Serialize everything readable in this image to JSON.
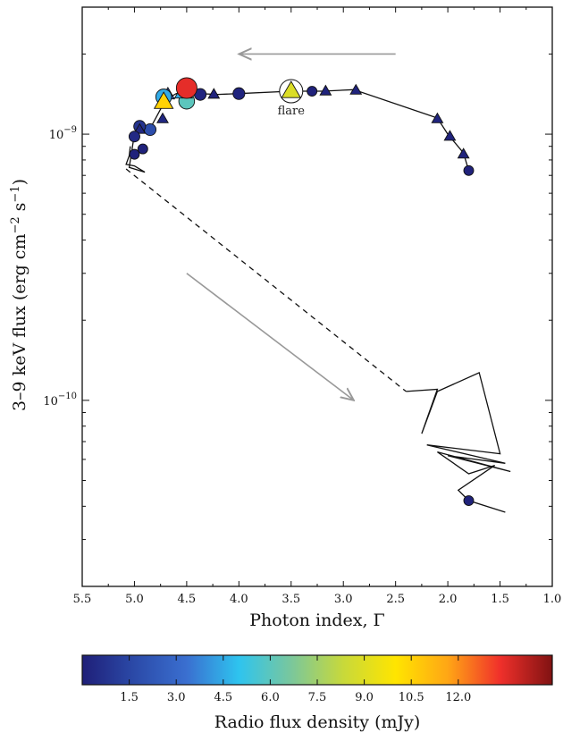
{
  "chart_data": {
    "type": "scatter",
    "xlabel": "Photon index, Γ",
    "ylabel_main": "3–9 keV flux (erg cm",
    "ylabel_sup1": "−2",
    "ylabel_mid": " s",
    "ylabel_sup2": "−1",
    "ylabel_end": ")",
    "x_axis": {
      "range": [
        5.5,
        1.0
      ],
      "reversed": true,
      "ticks": [
        5.5,
        5.0,
        4.5,
        4.0,
        3.5,
        3.0,
        2.5,
        2.0,
        1.5,
        1.0
      ],
      "tick_labels": [
        "5.5",
        "5.0",
        "4.5",
        "4.0",
        "3.5",
        "3.0",
        "2.5",
        "2.0",
        "1.5",
        "1.0"
      ]
    },
    "y_axis": {
      "scale": "log",
      "range": [
        2e-11,
        3e-09
      ],
      "major_ticks": [
        {
          "value": 1e-09,
          "base": "10",
          "exp": "−9"
        },
        {
          "value": 1e-10,
          "base": "10",
          "exp": "−10"
        }
      ]
    },
    "track": [
      [
        1.8,
        7.3e-10
      ],
      [
        1.85,
        8.5e-10
      ],
      [
        2.0,
        1e-09
      ],
      [
        2.1,
        1.15e-09
      ],
      [
        2.9,
        1.47e-09
      ],
      [
        3.2,
        1.45e-09
      ],
      [
        3.3,
        1.45e-09
      ],
      [
        3.5,
        1.45e-09
      ],
      [
        4.0,
        1.42e-09
      ],
      [
        4.2,
        1.41e-09
      ],
      [
        4.4,
        1.42e-09
      ],
      [
        4.5,
        1.45e-09
      ],
      [
        4.6,
        1.42e-09
      ],
      [
        4.7,
        1.35e-09
      ],
      [
        4.85,
        1.05e-09
      ],
      [
        4.95,
        1.1e-09
      ],
      [
        5.0,
        1e-09
      ],
      [
        5.05,
        7.5e-10
      ],
      [
        4.9,
        7.2e-10
      ],
      [
        5.0,
        7.6e-10
      ],
      [
        5.08,
        7.7e-10
      ],
      [
        5.05,
        8.3e-10
      ],
      [
        5.04,
        9e-10
      ]
    ],
    "gap_line": [
      [
        5.08,
        7.4e-10
      ],
      [
        2.4,
        1.08e-10
      ]
    ],
    "track_end": [
      [
        2.4,
        1.08e-10
      ],
      [
        2.1,
        1.1e-10
      ],
      [
        2.25,
        7.5e-11
      ],
      [
        2.1,
        1.08e-10
      ],
      [
        1.7,
        1.27e-10
      ],
      [
        1.5,
        6.3e-11
      ],
      [
        2.2,
        6.8e-11
      ],
      [
        1.45,
        5.8e-11
      ],
      [
        2.0,
        6.2e-11
      ],
      [
        1.4,
        5.4e-11
      ],
      [
        2.1,
        6.4e-11
      ],
      [
        1.8,
        5.3e-11
      ],
      [
        1.55,
        5.7e-11
      ],
      [
        1.9,
        4.6e-11
      ],
      [
        1.8,
        4.2e-11
      ],
      [
        1.45,
        3.8e-11
      ]
    ],
    "points": [
      {
        "x": 1.8,
        "y": 7.3e-10,
        "m": "o",
        "s": 1,
        "c": 0.1
      },
      {
        "x": 1.85,
        "y": 8.4e-10,
        "m": "^",
        "s": 1,
        "c": 0.15
      },
      {
        "x": 1.98,
        "y": 9.8e-10,
        "m": "^",
        "s": 1,
        "c": 0.15
      },
      {
        "x": 2.1,
        "y": 1.14e-09,
        "m": "^",
        "s": 1,
        "c": 0.2
      },
      {
        "x": 2.88,
        "y": 1.46e-09,
        "m": "^",
        "s": 1,
        "c": 0.15
      },
      {
        "x": 3.17,
        "y": 1.45e-09,
        "m": "^",
        "s": 1,
        "c": 0.15
      },
      {
        "x": 3.3,
        "y": 1.45e-09,
        "m": "o",
        "s": 1,
        "c": 0.1
      },
      {
        "x": 4.0,
        "y": 1.42e-09,
        "m": "o",
        "s": 1.2,
        "c": 0.2
      },
      {
        "x": 4.24,
        "y": 1.41e-09,
        "m": "^",
        "s": 1,
        "c": 0.15
      },
      {
        "x": 4.37,
        "y": 1.41e-09,
        "m": "o",
        "s": 1.2,
        "c": 0.25
      },
      {
        "x": 4.5,
        "y": 1.33e-09,
        "m": "o",
        "s": 1.6,
        "c": 6.0
      },
      {
        "x": 4.53,
        "y": 1.44e-09,
        "m": "^",
        "s": 1.6,
        "c": 4.5
      },
      {
        "x": 4.5,
        "y": 1.49e-09,
        "m": "o",
        "s": 2.1,
        "c": 13.5
      },
      {
        "x": 4.68,
        "y": 1.41e-09,
        "m": "^",
        "s": 1.2,
        "c": 2.0
      },
      {
        "x": 4.72,
        "y": 1.38e-09,
        "m": "o",
        "s": 1.6,
        "c": 4.5
      },
      {
        "x": 4.72,
        "y": 1.32e-09,
        "m": "^",
        "s": 1.7,
        "c": 10.5
      },
      {
        "x": 4.73,
        "y": 1.14e-09,
        "m": "^",
        "s": 1,
        "c": 0.3
      },
      {
        "x": 4.85,
        "y": 1.04e-09,
        "m": "o",
        "s": 1.2,
        "c": 1.8
      },
      {
        "x": 4.95,
        "y": 1.07e-09,
        "m": "o",
        "s": 1.2,
        "c": 0.8
      },
      {
        "x": 4.95,
        "y": 1.04e-09,
        "m": "^",
        "s": 1,
        "c": 0.3
      },
      {
        "x": 5.0,
        "y": 9.8e-10,
        "m": "o",
        "s": 1.1,
        "c": 0.4
      },
      {
        "x": 4.92,
        "y": 8.8e-10,
        "m": "o",
        "s": 1,
        "c": 0.1
      },
      {
        "x": 5.0,
        "y": 8.4e-10,
        "m": "o",
        "s": 1,
        "c": 0.1
      },
      {
        "x": 1.8,
        "y": 4.2e-11,
        "m": "o",
        "s": 1,
        "c": 0.1
      },
      {
        "x": 3.5,
        "y": 1.45e-09,
        "m": "^",
        "s": 1.7,
        "c": 8.9,
        "ring": true
      }
    ],
    "annotations": {
      "flare": "flare"
    },
    "arrows": [
      {
        "from": [
          2.5,
          2e-09
        ],
        "to": [
          4.0,
          2e-09
        ]
      },
      {
        "from": [
          4.5,
          3e-10
        ],
        "to": [
          2.9,
          1e-10
        ]
      }
    ],
    "colorbar": {
      "label": "Radio flux density (mJy)",
      "range": [
        0,
        15
      ],
      "ticks": [
        1.5,
        3.0,
        4.5,
        6.0,
        7.5,
        9.0,
        10.5,
        12.0
      ],
      "tick_labels": [
        "1.5",
        "3.0",
        "4.5",
        "6.0",
        "7.5",
        "9.0",
        "10.5",
        "12.0"
      ],
      "stops": [
        "#1f1f78",
        "#2b4aa8",
        "#3a6fd0",
        "#2ec4ef",
        "#7ac79c",
        "#c8d93a",
        "#ffe500",
        "#ffa615",
        "#f0302b",
        "#801212"
      ]
    }
  }
}
